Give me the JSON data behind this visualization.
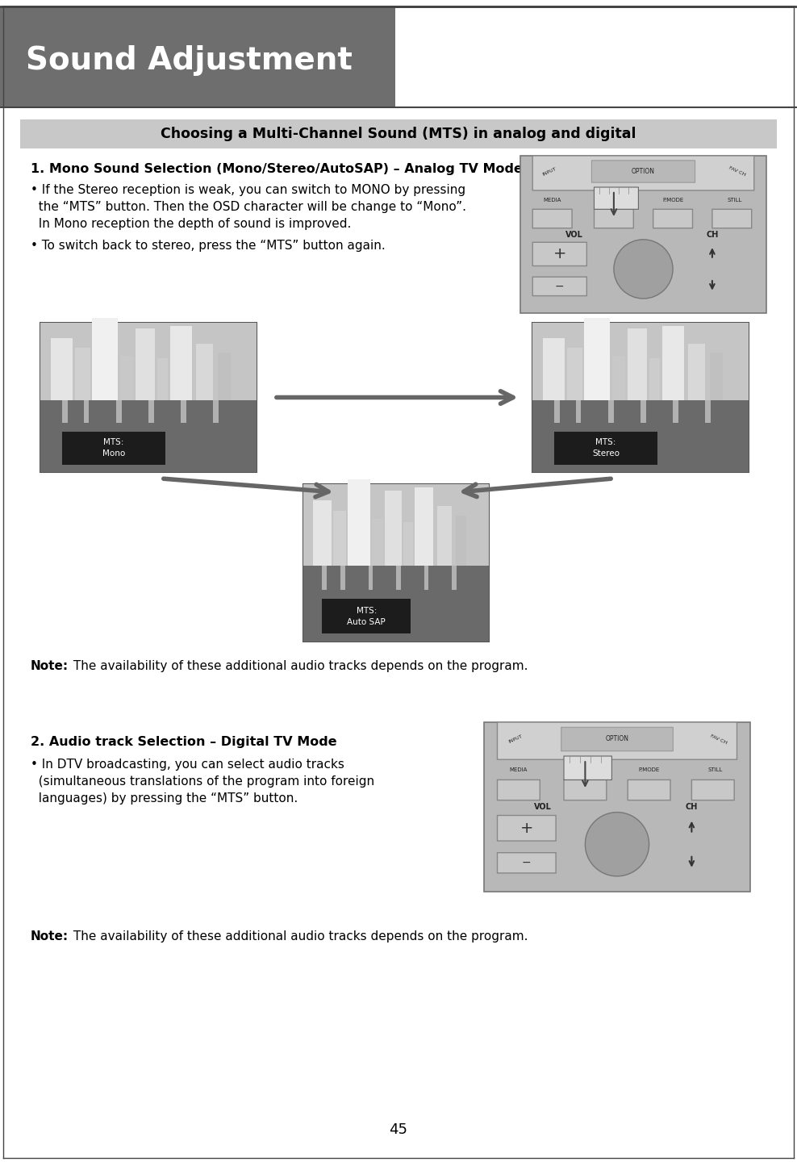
{
  "page_bg": "#ffffff",
  "header_bg": "#6e6e6e",
  "header_text": "Sound Adjustment",
  "header_text_color": "#ffffff",
  "page_number": "45",
  "section_bar_bg": "#c8c8c8",
  "section_bar_text": "Choosing a Multi-Channel Sound (MTS) in analog and digital",
  "section_bar_text_color": "#000000",
  "body_text_color": "#000000",
  "subsection1_title": "1. Mono Sound Selection (Mono/Stereo/AutoSAP) – Analog TV Mode",
  "bullet1a_line1": "• If the Stereo reception is weak, you can switch to MONO by pressing",
  "bullet1a_line2": "  the “MTS” button. Then the OSD character will be change to “Mono”.",
  "bullet1a_line3": "  In Mono reception the depth of sound is improved.",
  "bullet1b": "• To switch back to stereo, press the “MTS” button again.",
  "note1_bold": "Note:",
  "note1_rest": " The availability of these additional audio tracks depends on the program.",
  "subsection2_title": "2. Audio track Selection – Digital TV Mode",
  "bullet2a_line1": "• In DTV broadcasting, you can select audio tracks",
  "bullet2a_line2": "  (simultaneous translations of the program into foreign",
  "bullet2a_line3": "  languages) by pressing the “MTS” button.",
  "note2_bold": "Note:",
  "note2_rest": " The availability of these additional audio tracks depends on the program.",
  "label_mono": "MTS:\nMono",
  "label_stereo": "MTS:\nStereo",
  "label_autosap": "MTS:\nAuto SAP",
  "remote_bg": "#b8b8b8",
  "remote_border": "#888888",
  "remote_option_bg": "#c0c0c0",
  "remote_btn_bg": "#bbbbbb",
  "remote_arc_bg": "#c8c8c8",
  "tv_sky_color": "#aaaaaa",
  "tv_ground_color": "#787878",
  "tv_building_colors": [
    "#e8e8e8",
    "#cccccc",
    "#d5d5d5",
    "#bbbbbb",
    "#c8c8c8",
    "#e0e0e0"
  ],
  "tv_label_bg": "#111111",
  "arrow_color": "#666666"
}
